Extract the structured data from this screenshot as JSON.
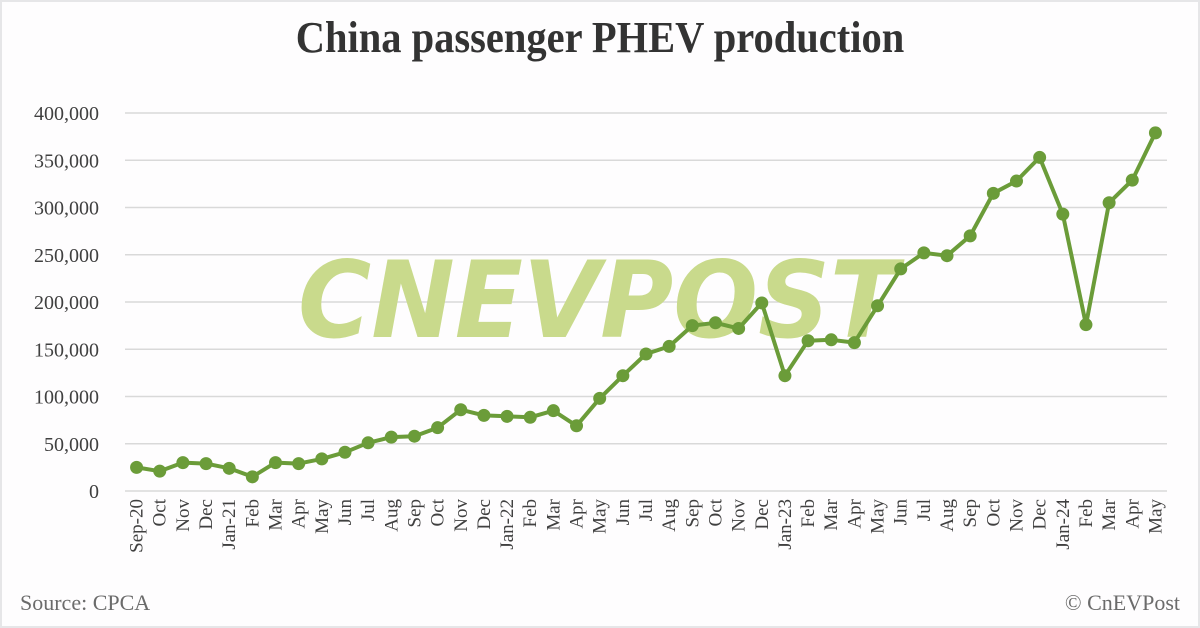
{
  "header": {
    "title": "China passenger PHEV production"
  },
  "footer": {
    "source": "Source: CPCA",
    "copyright": "© CnEVPost"
  },
  "watermark": {
    "text": "CNEVPOST",
    "color": "#c9da8c"
  },
  "colors": {
    "line": "#6b9c39",
    "marker": "#6b9c39",
    "grid": "#d9d9d9",
    "axis_text": "#404040",
    "title": "#333333"
  },
  "chart_data": {
    "type": "line",
    "title": "China passenger PHEV production",
    "xlabel": "",
    "ylabel": "",
    "ylim": [
      0,
      400000
    ],
    "yticks": [
      0,
      50000,
      100000,
      150000,
      200000,
      250000,
      300000,
      350000,
      400000
    ],
    "ytick_labels": [
      "0",
      "50,000",
      "100,000",
      "150,000",
      "200,000",
      "250,000",
      "300,000",
      "350,000",
      "400,000"
    ],
    "grid": true,
    "legend": null,
    "categories": [
      "Sep-20",
      "Oct",
      "Nov",
      "Dec",
      "Jan-21",
      "Feb",
      "Mar",
      "Apr",
      "May",
      "Jun",
      "Jul",
      "Aug",
      "Sep",
      "Oct",
      "Nov",
      "Dec",
      "Jan-22",
      "Feb",
      "Mar",
      "Apr",
      "May",
      "Jun",
      "Jul",
      "Aug",
      "Sep",
      "Oct",
      "Nov",
      "Dec",
      "Jan-23",
      "Feb",
      "Mar",
      "Apr",
      "May",
      "Jun",
      "Jul",
      "Aug",
      "Sep",
      "Oct",
      "Nov",
      "Dec",
      "Jan-24",
      "Feb",
      "Mar",
      "Apr",
      "May"
    ],
    "series": [
      {
        "name": "PHEV production",
        "values": [
          25000,
          21000,
          30000,
          29000,
          24000,
          15000,
          30000,
          29000,
          34000,
          41000,
          51000,
          57000,
          58000,
          67000,
          86000,
          80000,
          79000,
          78000,
          85000,
          69000,
          98000,
          122000,
          145000,
          153000,
          175000,
          178000,
          172000,
          199000,
          122000,
          159000,
          160000,
          157000,
          196000,
          235000,
          252000,
          249000,
          270000,
          315000,
          328000,
          353000,
          293000,
          176000,
          305000,
          329000,
          379000
        ]
      }
    ],
    "annotations": [
      "Source: CPCA",
      "© CnEVPost"
    ]
  }
}
